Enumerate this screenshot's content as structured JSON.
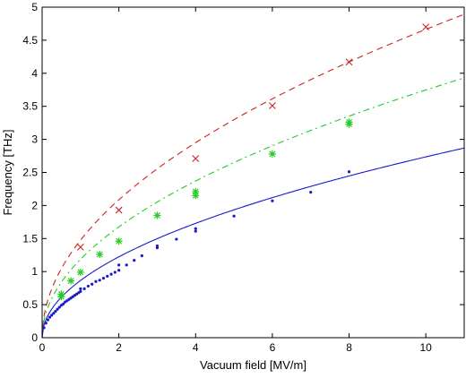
{
  "chart_data": {
    "type": "scatter",
    "title": "",
    "xlabel": "Vacuum field [MV/m]",
    "ylabel": "Frequency [THz]",
    "xlim": [
      0,
      11
    ],
    "ylim": [
      0,
      5
    ],
    "xticks": [
      "0",
      "2",
      "4",
      "6",
      "8",
      "10"
    ],
    "yticks": [
      "0",
      "0.5",
      "1",
      "1.5",
      "2",
      "2.5",
      "3",
      "3.5",
      "4",
      "4.5",
      "5"
    ],
    "grid": false,
    "legend": "none",
    "series": [
      {
        "marker": "x",
        "color": "#cc2222",
        "points": [
          [
            1,
            1.37
          ],
          [
            2,
            1.93
          ],
          [
            4,
            2.71
          ],
          [
            6,
            3.51
          ],
          [
            8,
            4.17
          ],
          [
            10,
            4.7
          ]
        ],
        "fit": {
          "style": "dashed",
          "coef": 1.475,
          "exp": 0.5
        }
      },
      {
        "marker": "asterisk",
        "color": "#22cc22",
        "points": [
          [
            0.5,
            0.62
          ],
          [
            0.5,
            0.66
          ],
          [
            0.75,
            0.86
          ],
          [
            1,
            0.99
          ],
          [
            1.5,
            1.26
          ],
          [
            2,
            1.46
          ],
          [
            3,
            1.85
          ],
          [
            4,
            2.15
          ],
          [
            4,
            2.21
          ],
          [
            6,
            2.78
          ],
          [
            8,
            3.23
          ],
          [
            8,
            3.26
          ]
        ],
        "fit": {
          "style": "dash-dot",
          "coef": 1.185,
          "exp": 0.5
        }
      },
      {
        "marker": "dot",
        "color": "#1a1acc",
        "points": [
          [
            0.05,
            0.15
          ],
          [
            0.1,
            0.22
          ],
          [
            0.15,
            0.27
          ],
          [
            0.2,
            0.31
          ],
          [
            0.25,
            0.34
          ],
          [
            0.3,
            0.37
          ],
          [
            0.35,
            0.4
          ],
          [
            0.4,
            0.43
          ],
          [
            0.45,
            0.46
          ],
          [
            0.5,
            0.49
          ],
          [
            0.55,
            0.51
          ],
          [
            0.6,
            0.54
          ],
          [
            0.65,
            0.56
          ],
          [
            0.7,
            0.58
          ],
          [
            0.75,
            0.6
          ],
          [
            0.8,
            0.62
          ],
          [
            0.85,
            0.64
          ],
          [
            0.9,
            0.66
          ],
          [
            0.95,
            0.68
          ],
          [
            1.0,
            0.7
          ],
          [
            1.0,
            0.74
          ],
          [
            1.1,
            0.74
          ],
          [
            1.2,
            0.78
          ],
          [
            1.3,
            0.81
          ],
          [
            1.4,
            0.85
          ],
          [
            1.5,
            0.87
          ],
          [
            1.6,
            0.9
          ],
          [
            1.7,
            0.93
          ],
          [
            1.8,
            0.96
          ],
          [
            1.9,
            0.99
          ],
          [
            2.0,
            1.02
          ],
          [
            2.0,
            1.1
          ],
          [
            2.2,
            1.1
          ],
          [
            2.4,
            1.17
          ],
          [
            2.6,
            1.24
          ],
          [
            3.0,
            1.36
          ],
          [
            3.0,
            1.39
          ],
          [
            3.5,
            1.49
          ],
          [
            4.0,
            1.61
          ],
          [
            4.0,
            1.65
          ],
          [
            5.0,
            1.84
          ],
          [
            6.0,
            2.07
          ],
          [
            7.0,
            2.2
          ],
          [
            8.0,
            2.51
          ]
        ],
        "fit": {
          "style": "solid",
          "coef": 0.865,
          "exp": 0.5
        }
      }
    ]
  }
}
